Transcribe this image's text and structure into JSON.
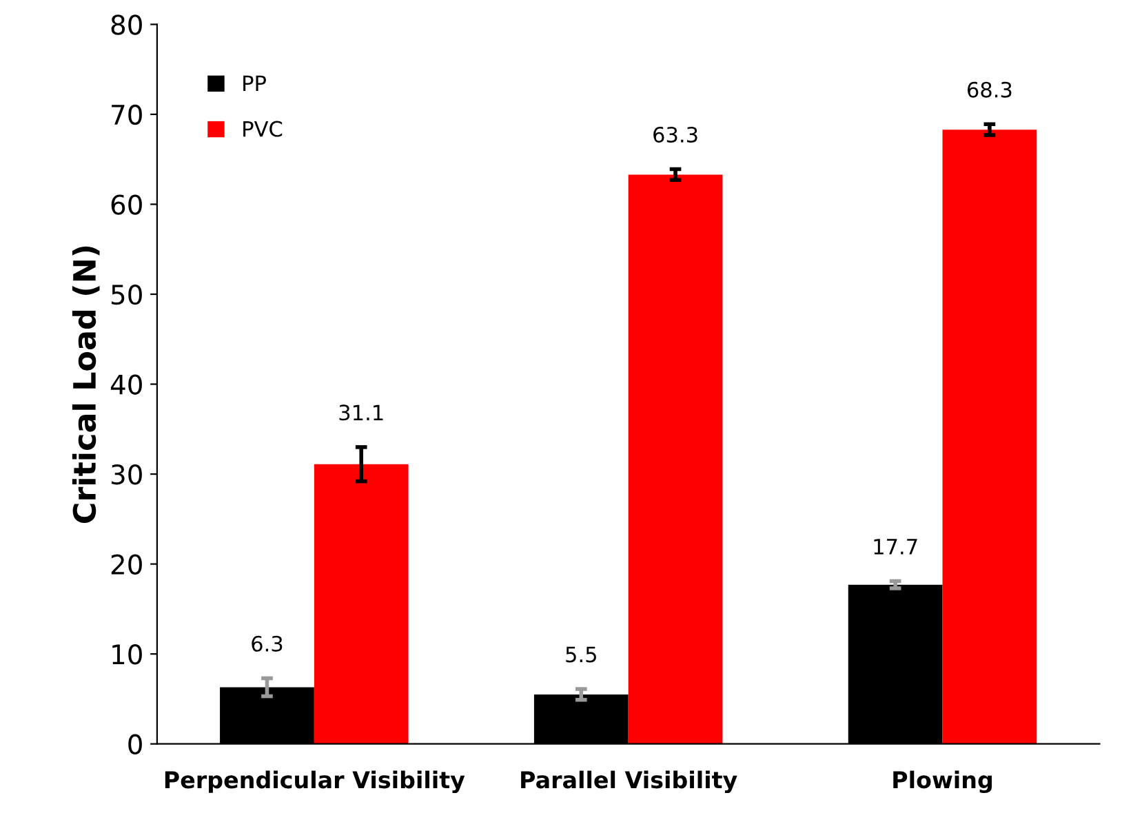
{
  "chart_data": {
    "type": "bar",
    "ylabel": "Critical Load (N)",
    "categories": [
      "Perpendicular Visibility",
      "Parallel Visibility",
      "Plowing"
    ],
    "series": [
      {
        "name": "PP",
        "color": "#000000",
        "values": [
          6.3,
          5.5,
          17.7
        ],
        "errors": [
          1.0,
          0.6,
          0.4
        ]
      },
      {
        "name": "PVC",
        "color": "#ff0000",
        "values": [
          31.1,
          63.3,
          68.3
        ],
        "errors": [
          1.9,
          0.6,
          0.6
        ]
      }
    ],
    "ylim": [
      0,
      80
    ],
    "yticks": [
      0,
      10,
      20,
      30,
      40,
      50,
      60,
      70,
      80
    ],
    "data_labels": true,
    "legend": "top left",
    "grid": false
  }
}
